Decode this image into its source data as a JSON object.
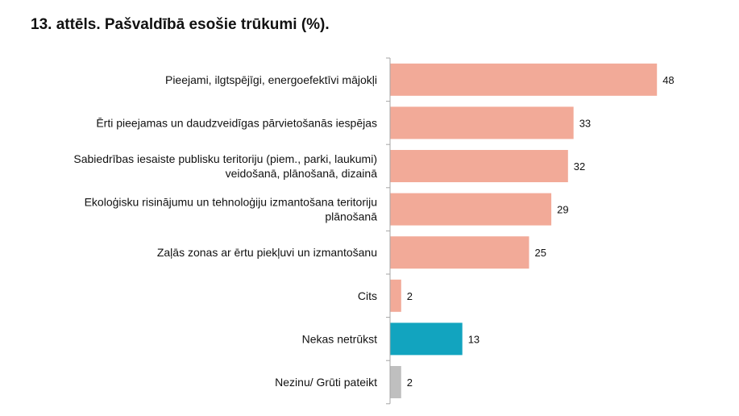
{
  "title": "13. attēls. Pašvaldībā esošie trūkumi (%).",
  "colors": {
    "default": "#f2aa98",
    "neutral": "#12a4bf",
    "unknown": "#bfbfbf",
    "axis": "#a6a6a6"
  },
  "chart_data": {
    "type": "bar",
    "orientation": "horizontal",
    "title": "13. attēls. Pašvaldībā esošie trūkumi (%).",
    "xlabel": "",
    "ylabel": "",
    "xlim": [
      0,
      50
    ],
    "grid": false,
    "categories": [
      [
        "Pieejami, ilgtspējīgi, energoefektīvi mājokļi"
      ],
      [
        "Ērti pieejamas un daudzveidīgas pārvietošanās iespējas"
      ],
      [
        "Sabiedrības iesaiste publisku teritoriju (piem., parki, laukumi)",
        "veidošanā, plānošanā, dizainā"
      ],
      [
        "Ekoloģisku risinājumu un tehnoloģiju izmantošana teritoriju",
        "plānošanā"
      ],
      [
        "Zaļās zonas ar ērtu piekļuvi un izmantošanu"
      ],
      [
        "Cits"
      ],
      [
        "Nekas netrūkst"
      ],
      [
        "Nezinu/ Grūti pateikt"
      ]
    ],
    "values": [
      48,
      33,
      32,
      29,
      25,
      2,
      13,
      2
    ],
    "bar_colors": [
      "default",
      "default",
      "default",
      "default",
      "default",
      "default",
      "neutral",
      "unknown"
    ]
  }
}
